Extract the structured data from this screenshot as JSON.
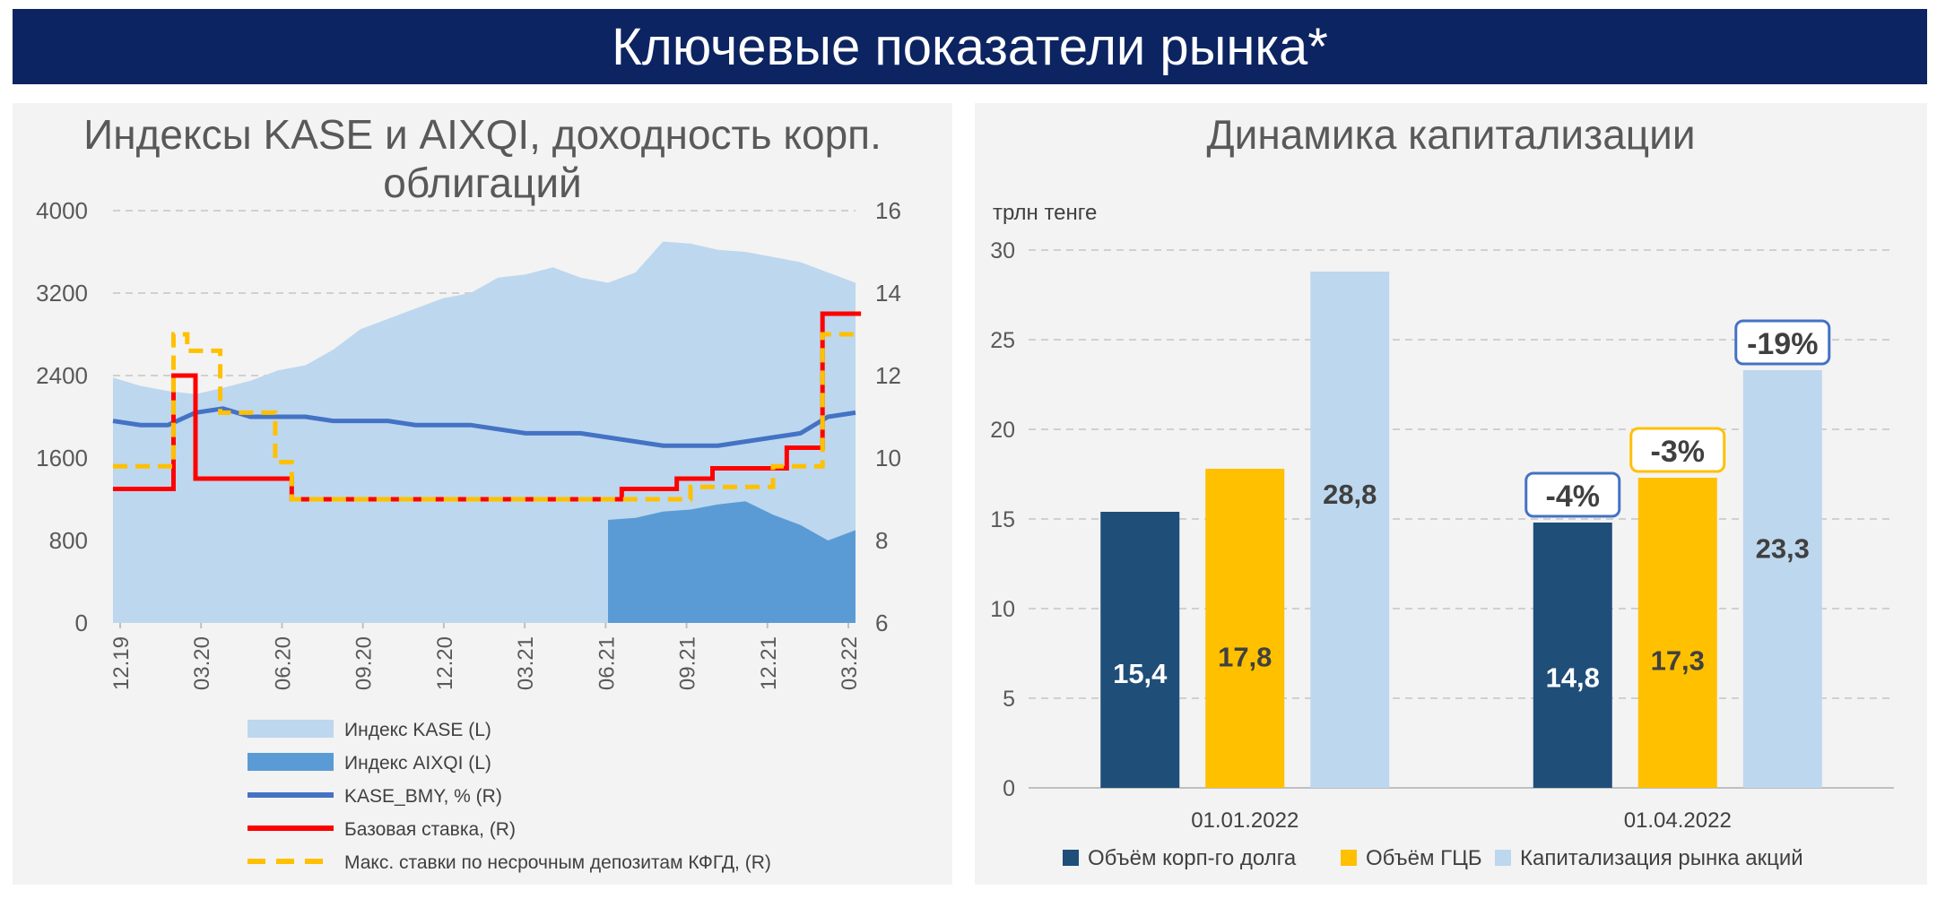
{
  "header": {
    "title": "Ключевые показатели рынка*"
  },
  "colors": {
    "header_bg": "#0c2461",
    "kase": "#bdd7ee",
    "aixqi": "#5b9bd5",
    "bmy": "#4472c4",
    "base_rate": "#ff0000",
    "deposit_rate": "#ffc000",
    "corp_debt": "#1f4e79",
    "gcb": "#ffc000",
    "equity": "#bdd7ee"
  },
  "chart_data": [
    {
      "type": "area",
      "title": "Индексы KASE и AIXQI, доходность корп. облигаций",
      "y_left": {
        "ticks": [
          "0",
          "800",
          "1600",
          "2400",
          "3200",
          "4000"
        ],
        "range": [
          0,
          4000
        ]
      },
      "y_right": {
        "ticks": [
          "6",
          "8",
          "10",
          "12",
          "14",
          "16"
        ],
        "range": [
          6,
          16
        ]
      },
      "x_ticks": [
        "12.19",
        "03.20",
        "06.20",
        "09.20",
        "12.20",
        "03.21",
        "06.21",
        "09.21",
        "12.21",
        "03.22"
      ],
      "x_range": [
        0,
        27
      ],
      "series": [
        {
          "name": "Индекс KASE (L)",
          "kind": "area",
          "axis": "left",
          "points": [
            [
              0,
              2380
            ],
            [
              1,
              2300
            ],
            [
              2,
              2250
            ],
            [
              3,
              2220
            ],
            [
              4,
              2280
            ],
            [
              5,
              2350
            ],
            [
              6,
              2450
            ],
            [
              7,
              2500
            ],
            [
              8,
              2650
            ],
            [
              9,
              2850
            ],
            [
              10,
              2950
            ],
            [
              11,
              3050
            ],
            [
              12,
              3150
            ],
            [
              13,
              3200
            ],
            [
              14,
              3350
            ],
            [
              15,
              3380
            ],
            [
              16,
              3450
            ],
            [
              17,
              3350
            ],
            [
              18,
              3300
            ],
            [
              19,
              3400
            ],
            [
              20,
              3700
            ],
            [
              21,
              3680
            ],
            [
              22,
              3620
            ],
            [
              23,
              3600
            ],
            [
              24,
              3550
            ],
            [
              25,
              3500
            ],
            [
              26,
              3400
            ],
            [
              27,
              3300
            ]
          ]
        },
        {
          "name": "Индекс AIXQI (L)",
          "kind": "area",
          "axis": "left",
          "points": [
            [
              18,
              1000
            ],
            [
              19,
              1020
            ],
            [
              20,
              1080
            ],
            [
              21,
              1100
            ],
            [
              22,
              1150
            ],
            [
              23,
              1180
            ],
            [
              24,
              1050
            ],
            [
              25,
              950
            ],
            [
              26,
              800
            ],
            [
              27,
              900
            ]
          ]
        },
        {
          "name": "KASE_BMY, % (R)",
          "kind": "line",
          "axis": "right",
          "points": [
            [
              0,
              10.9
            ],
            [
              1,
              10.8
            ],
            [
              2,
              10.8
            ],
            [
              3,
              11.1
            ],
            [
              4,
              11.2
            ],
            [
              5,
              11.0
            ],
            [
              6,
              11.0
            ],
            [
              7,
              11.0
            ],
            [
              8,
              10.9
            ],
            [
              9,
              10.9
            ],
            [
              10,
              10.9
            ],
            [
              11,
              10.8
            ],
            [
              12,
              10.8
            ],
            [
              13,
              10.8
            ],
            [
              14,
              10.7
            ],
            [
              15,
              10.6
            ],
            [
              16,
              10.6
            ],
            [
              17,
              10.6
            ],
            [
              18,
              10.5
            ],
            [
              19,
              10.4
            ],
            [
              20,
              10.3
            ],
            [
              21,
              10.3
            ],
            [
              22,
              10.3
            ],
            [
              23,
              10.4
            ],
            [
              24,
              10.5
            ],
            [
              25,
              10.6
            ],
            [
              26,
              11.0
            ],
            [
              27,
              11.1
            ]
          ]
        },
        {
          "name": "Базовая ставка, (R)",
          "kind": "step",
          "axis": "right",
          "points": [
            [
              0,
              9.25
            ],
            [
              2.2,
              9.25
            ],
            [
              2.2,
              12.0
            ],
            [
              3.0,
              12.0
            ],
            [
              3.0,
              9.5
            ],
            [
              6.5,
              9.5
            ],
            [
              6.5,
              9.0
            ],
            [
              18.5,
              9.0
            ],
            [
              18.5,
              9.25
            ],
            [
              20.5,
              9.25
            ],
            [
              20.5,
              9.5
            ],
            [
              21.8,
              9.5
            ],
            [
              21.8,
              9.75
            ],
            [
              24.5,
              9.75
            ],
            [
              24.5,
              10.25
            ],
            [
              25.8,
              10.25
            ],
            [
              25.8,
              13.5
            ],
            [
              27.2,
              13.5
            ]
          ]
        },
        {
          "name": "Макс. ставки по несрочным депозитам КФГД, (R)",
          "kind": "dashed",
          "axis": "right",
          "points": [
            [
              0,
              9.8
            ],
            [
              2.2,
              9.8
            ],
            [
              2.2,
              13.0
            ],
            [
              2.7,
              13.0
            ],
            [
              2.7,
              12.6
            ],
            [
              3.9,
              12.6
            ],
            [
              3.9,
              11.1
            ],
            [
              5.9,
              11.1
            ],
            [
              5.9,
              9.9
            ],
            [
              6.5,
              9.9
            ],
            [
              6.5,
              9.0
            ],
            [
              21.0,
              9.0
            ],
            [
              21.0,
              9.3
            ],
            [
              24.0,
              9.3
            ],
            [
              24.0,
              9.8
            ],
            [
              25.8,
              9.8
            ],
            [
              25.8,
              13.0
            ],
            [
              27.2,
              13.0
            ]
          ]
        }
      ]
    },
    {
      "type": "bar",
      "title": "Динамика капитализации",
      "unit_label": "трлн тенге",
      "categories": [
        "01.01.2022",
        "01.04.2022"
      ],
      "y_ticks": [
        "0",
        "5",
        "10",
        "15",
        "20",
        "25",
        "30"
      ],
      "ylim": [
        0,
        30
      ],
      "series": [
        {
          "name": "Объём корп-го долга",
          "values": [
            15.4,
            14.8
          ],
          "labels": [
            "15,4",
            "14,8"
          ]
        },
        {
          "name": "Объём ГЦБ",
          "values": [
            17.8,
            17.3
          ],
          "labels": [
            "17,8",
            "17,3"
          ]
        },
        {
          "name": "Капитализация рынка акций",
          "values": [
            28.8,
            23.3
          ],
          "labels": [
            "28,8",
            "23,3"
          ]
        }
      ],
      "change_callouts": [
        "-4%",
        "-3%",
        "-19%"
      ]
    }
  ]
}
